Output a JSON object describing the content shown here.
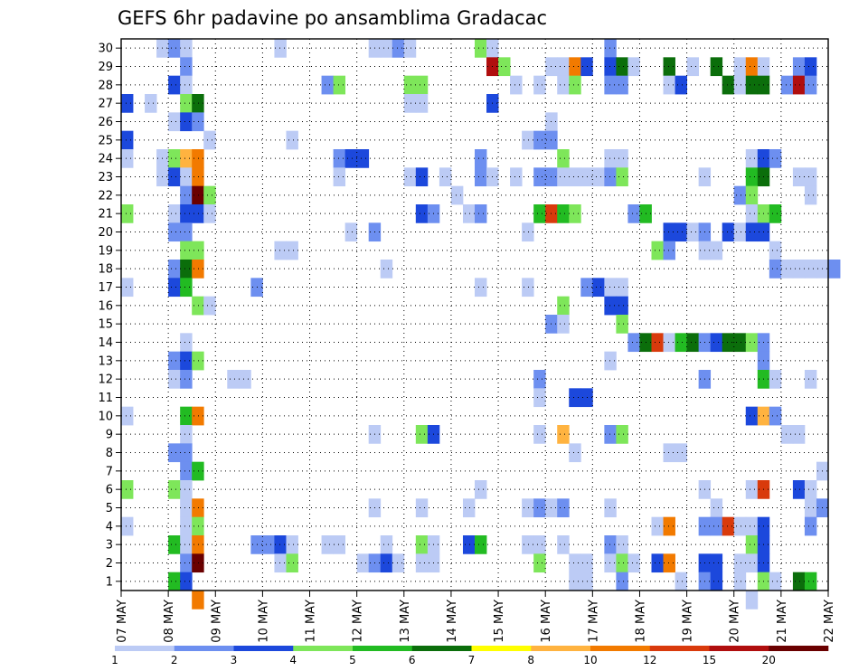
{
  "chart_data": {
    "type": "heatmap",
    "title": "GEFS 6hr padavine po ansamblima Gradacac",
    "y_ticks": [
      "1",
      "2",
      "3",
      "4",
      "5",
      "6",
      "7",
      "8",
      "9",
      "10",
      "11",
      "12",
      "13",
      "14",
      "15",
      "16",
      "17",
      "18",
      "19",
      "20",
      "21",
      "22",
      "23",
      "24",
      "25",
      "26",
      "27",
      "28",
      "29",
      "30"
    ],
    "x_ticks": [
      "07 MAY",
      "08 MAY",
      "09 MAY",
      "10 MAY",
      "11 MAY",
      "12 MAY",
      "13 MAY",
      "14 MAY",
      "15 MAY",
      "16 MAY",
      "17 MAY",
      "18 MAY",
      "19 MAY",
      "20 MAY",
      "21 MAY",
      "22 MAY"
    ],
    "x_range_days": [
      0,
      15
    ],
    "x_step_hours": 6,
    "y_range": [
      1,
      30
    ],
    "grid": "dotted",
    "legend_position": "bottom",
    "legend": {
      "labels": [
        "1",
        "2",
        "3",
        "4",
        "5",
        "6",
        "7",
        "8",
        "10",
        "12",
        "15",
        "20"
      ],
      "colors": [
        "#bccbf5",
        "#6d8ff0",
        "#1c48dc",
        "#7ee65a",
        "#22bb22",
        "#0b6e0b",
        "#ffff00",
        "#ffb340",
        "#f27a00",
        "#d93a0c",
        "#b00e0e",
        "#6a0000"
      ]
    },
    "data_note": "cells: [member, time_step_index, color_class 0-11]",
    "cells": [
      [
        30,
        3,
        0
      ],
      [
        30,
        4,
        1
      ],
      [
        30,
        5,
        0
      ],
      [
        30,
        13,
        0
      ],
      [
        30,
        21,
        0
      ],
      [
        30,
        22,
        0
      ],
      [
        30,
        23,
        1
      ],
      [
        30,
        24,
        0
      ],
      [
        30,
        30,
        3
      ],
      [
        30,
        31,
        0
      ],
      [
        30,
        41,
        1
      ],
      [
        29,
        5,
        1
      ],
      [
        29,
        31,
        10
      ],
      [
        29,
        32,
        3
      ],
      [
        29,
        36,
        0
      ],
      [
        29,
        37,
        0
      ],
      [
        29,
        38,
        8
      ],
      [
        29,
        39,
        2
      ],
      [
        29,
        41,
        2
      ],
      [
        29,
        42,
        5
      ],
      [
        29,
        43,
        0
      ],
      [
        29,
        46,
        5
      ],
      [
        29,
        48,
        0
      ],
      [
        29,
        50,
        5
      ],
      [
        29,
        52,
        0
      ],
      [
        29,
        53,
        8
      ],
      [
        29,
        54,
        0
      ],
      [
        29,
        57,
        1
      ],
      [
        29,
        58,
        2
      ],
      [
        28,
        4,
        2
      ],
      [
        28,
        5,
        0
      ],
      [
        28,
        17,
        1
      ],
      [
        28,
        18,
        3
      ],
      [
        28,
        24,
        3
      ],
      [
        28,
        25,
        3
      ],
      [
        28,
        33,
        0
      ],
      [
        28,
        35,
        0
      ],
      [
        28,
        37,
        0
      ],
      [
        28,
        38,
        3
      ],
      [
        28,
        41,
        1
      ],
      [
        28,
        42,
        1
      ],
      [
        28,
        46,
        0
      ],
      [
        28,
        47,
        2
      ],
      [
        28,
        51,
        5
      ],
      [
        28,
        52,
        0
      ],
      [
        28,
        53,
        5
      ],
      [
        28,
        54,
        5
      ],
      [
        28,
        56,
        1
      ],
      [
        28,
        57,
        10
      ],
      [
        28,
        58,
        1
      ],
      [
        27,
        0,
        2
      ],
      [
        27,
        2,
        0
      ],
      [
        27,
        5,
        3
      ],
      [
        27,
        6,
        5
      ],
      [
        27,
        24,
        0
      ],
      [
        27,
        25,
        0
      ],
      [
        27,
        31,
        2
      ],
      [
        26,
        4,
        0
      ],
      [
        26,
        5,
        2
      ],
      [
        26,
        6,
        1
      ],
      [
        26,
        36,
        0
      ],
      [
        25,
        0,
        2
      ],
      [
        25,
        7,
        0
      ],
      [
        25,
        14,
        0
      ],
      [
        25,
        34,
        0
      ],
      [
        25,
        35,
        1
      ],
      [
        25,
        36,
        1
      ],
      [
        24,
        0,
        0
      ],
      [
        24,
        3,
        0
      ],
      [
        24,
        4,
        3
      ],
      [
        24,
        5,
        7
      ],
      [
        24,
        6,
        8
      ],
      [
        24,
        18,
        1
      ],
      [
        24,
        19,
        2
      ],
      [
        24,
        20,
        2
      ],
      [
        24,
        30,
        1
      ],
      [
        24,
        37,
        3
      ],
      [
        24,
        41,
        0
      ],
      [
        24,
        42,
        0
      ],
      [
        24,
        53,
        0
      ],
      [
        24,
        54,
        2
      ],
      [
        24,
        55,
        1
      ],
      [
        23,
        3,
        0
      ],
      [
        23,
        4,
        2
      ],
      [
        23,
        5,
        0
      ],
      [
        23,
        6,
        8
      ],
      [
        23,
        18,
        0
      ],
      [
        23,
        24,
        0
      ],
      [
        23,
        25,
        2
      ],
      [
        23,
        27,
        0
      ],
      [
        23,
        30,
        1
      ],
      [
        23,
        31,
        0
      ],
      [
        23,
        33,
        0
      ],
      [
        23,
        35,
        1
      ],
      [
        23,
        36,
        1
      ],
      [
        23,
        37,
        0
      ],
      [
        23,
        38,
        0
      ],
      [
        23,
        39,
        0
      ],
      [
        23,
        40,
        0
      ],
      [
        23,
        41,
        1
      ],
      [
        23,
        42,
        3
      ],
      [
        23,
        49,
        0
      ],
      [
        23,
        53,
        4
      ],
      [
        23,
        54,
        5
      ],
      [
        23,
        57,
        0
      ],
      [
        23,
        58,
        0
      ],
      [
        22,
        5,
        1
      ],
      [
        22,
        6,
        11
      ],
      [
        22,
        7,
        3
      ],
      [
        22,
        28,
        0
      ],
      [
        22,
        52,
        1
      ],
      [
        22,
        53,
        3
      ],
      [
        22,
        58,
        0
      ],
      [
        21,
        0,
        3
      ],
      [
        21,
        4,
        0
      ],
      [
        21,
        5,
        2
      ],
      [
        21,
        6,
        2
      ],
      [
        21,
        7,
        0
      ],
      [
        21,
        25,
        2
      ],
      [
        21,
        26,
        1
      ],
      [
        21,
        29,
        0
      ],
      [
        21,
        30,
        1
      ],
      [
        21,
        35,
        4
      ],
      [
        21,
        36,
        9
      ],
      [
        21,
        37,
        4
      ],
      [
        21,
        38,
        3
      ],
      [
        21,
        43,
        1
      ],
      [
        21,
        44,
        4
      ],
      [
        21,
        53,
        0
      ],
      [
        21,
        54,
        3
      ],
      [
        21,
        55,
        4
      ],
      [
        20,
        4,
        1
      ],
      [
        20,
        5,
        1
      ],
      [
        20,
        19,
        0
      ],
      [
        20,
        21,
        1
      ],
      [
        20,
        34,
        0
      ],
      [
        20,
        46,
        2
      ],
      [
        20,
        47,
        2
      ],
      [
        20,
        48,
        0
      ],
      [
        20,
        49,
        1
      ],
      [
        20,
        51,
        2
      ],
      [
        20,
        52,
        0
      ],
      [
        20,
        53,
        2
      ],
      [
        20,
        54,
        2
      ],
      [
        19,
        5,
        3
      ],
      [
        19,
        6,
        3
      ],
      [
        19,
        13,
        0
      ],
      [
        19,
        14,
        0
      ],
      [
        19,
        45,
        3
      ],
      [
        19,
        46,
        1
      ],
      [
        19,
        49,
        0
      ],
      [
        19,
        50,
        0
      ],
      [
        19,
        55,
        0
      ],
      [
        18,
        4,
        1
      ],
      [
        18,
        5,
        5
      ],
      [
        18,
        6,
        8
      ],
      [
        18,
        22,
        0
      ],
      [
        18,
        55,
        1
      ],
      [
        18,
        56,
        0
      ],
      [
        18,
        57,
        0
      ],
      [
        18,
        58,
        0
      ],
      [
        18,
        59,
        0
      ],
      [
        18,
        60,
        1
      ],
      [
        17,
        0,
        0
      ],
      [
        17,
        4,
        2
      ],
      [
        17,
        5,
        4
      ],
      [
        17,
        11,
        1
      ],
      [
        17,
        30,
        0
      ],
      [
        17,
        34,
        0
      ],
      [
        17,
        39,
        1
      ],
      [
        17,
        40,
        2
      ],
      [
        17,
        41,
        0
      ],
      [
        17,
        42,
        0
      ],
      [
        16,
        6,
        3
      ],
      [
        16,
        7,
        0
      ],
      [
        16,
        37,
        3
      ],
      [
        16,
        41,
        2
      ],
      [
        16,
        42,
        2
      ],
      [
        15,
        36,
        1
      ],
      [
        15,
        37,
        0
      ],
      [
        15,
        42,
        3
      ],
      [
        14,
        5,
        0
      ],
      [
        14,
        43,
        1
      ],
      [
        14,
        44,
        5
      ],
      [
        14,
        45,
        9
      ],
      [
        14,
        46,
        0
      ],
      [
        14,
        47,
        4
      ],
      [
        14,
        48,
        5
      ],
      [
        14,
        49,
        1
      ],
      [
        14,
        50,
        2
      ],
      [
        14,
        51,
        5
      ],
      [
        14,
        52,
        5
      ],
      [
        14,
        53,
        3
      ],
      [
        14,
        54,
        1
      ],
      [
        13,
        4,
        1
      ],
      [
        13,
        5,
        2
      ],
      [
        13,
        6,
        3
      ],
      [
        13,
        41,
        0
      ],
      [
        13,
        54,
        1
      ],
      [
        12,
        4,
        0
      ],
      [
        12,
        5,
        1
      ],
      [
        12,
        9,
        0
      ],
      [
        12,
        10,
        0
      ],
      [
        12,
        35,
        1
      ],
      [
        12,
        49,
        1
      ],
      [
        12,
        54,
        4
      ],
      [
        12,
        55,
        0
      ],
      [
        12,
        58,
        0
      ],
      [
        11,
        35,
        0
      ],
      [
        11,
        38,
        2
      ],
      [
        11,
        39,
        2
      ],
      [
        10,
        0,
        0
      ],
      [
        10,
        5,
        4
      ],
      [
        10,
        6,
        8
      ],
      [
        10,
        53,
        2
      ],
      [
        10,
        54,
        7
      ],
      [
        10,
        55,
        1
      ],
      [
        9,
        5,
        0
      ],
      [
        9,
        21,
        0
      ],
      [
        9,
        25,
        3
      ],
      [
        9,
        26,
        2
      ],
      [
        9,
        35,
        0
      ],
      [
        9,
        37,
        7
      ],
      [
        9,
        41,
        1
      ],
      [
        9,
        42,
        3
      ],
      [
        9,
        56,
        0
      ],
      [
        9,
        57,
        0
      ],
      [
        8,
        4,
        1
      ],
      [
        8,
        5,
        1
      ],
      [
        8,
        38,
        0
      ],
      [
        8,
        46,
        0
      ],
      [
        8,
        47,
        0
      ],
      [
        7,
        5,
        1
      ],
      [
        7,
        6,
        4
      ],
      [
        7,
        59,
        0
      ],
      [
        6,
        0,
        3
      ],
      [
        6,
        4,
        3
      ],
      [
        6,
        5,
        0
      ],
      [
        6,
        30,
        0
      ],
      [
        6,
        49,
        0
      ],
      [
        6,
        53,
        0
      ],
      [
        6,
        54,
        9
      ],
      [
        6,
        57,
        2
      ],
      [
        6,
        58,
        0
      ],
      [
        5,
        5,
        0
      ],
      [
        5,
        6,
        8
      ],
      [
        5,
        21,
        0
      ],
      [
        5,
        25,
        0
      ],
      [
        5,
        29,
        0
      ],
      [
        5,
        34,
        0
      ],
      [
        5,
        35,
        1
      ],
      [
        5,
        36,
        0
      ],
      [
        5,
        37,
        1
      ],
      [
        5,
        41,
        0
      ],
      [
        5,
        50,
        0
      ],
      [
        5,
        58,
        0
      ],
      [
        5,
        59,
        1
      ],
      [
        4,
        0,
        0
      ],
      [
        4,
        5,
        0
      ],
      [
        4,
        6,
        3
      ],
      [
        4,
        45,
        0
      ],
      [
        4,
        46,
        8
      ],
      [
        4,
        49,
        1
      ],
      [
        4,
        50,
        1
      ],
      [
        4,
        51,
        9
      ],
      [
        4,
        52,
        0
      ],
      [
        4,
        53,
        0
      ],
      [
        4,
        54,
        2
      ],
      [
        4,
        58,
        1
      ],
      [
        3,
        4,
        4
      ],
      [
        3,
        5,
        0
      ],
      [
        3,
        6,
        8
      ],
      [
        3,
        11,
        1
      ],
      [
        3,
        12,
        1
      ],
      [
        3,
        13,
        2
      ],
      [
        3,
        14,
        0
      ],
      [
        3,
        17,
        0
      ],
      [
        3,
        18,
        0
      ],
      [
        3,
        22,
        0
      ],
      [
        3,
        25,
        3
      ],
      [
        3,
        26,
        0
      ],
      [
        3,
        29,
        2
      ],
      [
        3,
        30,
        4
      ],
      [
        3,
        34,
        0
      ],
      [
        3,
        35,
        0
      ],
      [
        3,
        37,
        0
      ],
      [
        3,
        41,
        1
      ],
      [
        3,
        42,
        0
      ],
      [
        3,
        53,
        3
      ],
      [
        3,
        54,
        2
      ],
      [
        2,
        5,
        1
      ],
      [
        2,
        6,
        11
      ],
      [
        2,
        13,
        0
      ],
      [
        2,
        14,
        3
      ],
      [
        2,
        20,
        0
      ],
      [
        2,
        21,
        1
      ],
      [
        2,
        22,
        2
      ],
      [
        2,
        23,
        0
      ],
      [
        2,
        25,
        0
      ],
      [
        2,
        26,
        0
      ],
      [
        2,
        35,
        3
      ],
      [
        2,
        38,
        0
      ],
      [
        2,
        39,
        0
      ],
      [
        2,
        41,
        0
      ],
      [
        2,
        42,
        3
      ],
      [
        2,
        43,
        0
      ],
      [
        2,
        45,
        2
      ],
      [
        2,
        46,
        8
      ],
      [
        2,
        49,
        2
      ],
      [
        2,
        50,
        2
      ],
      [
        2,
        52,
        0
      ],
      [
        2,
        53,
        0
      ],
      [
        2,
        54,
        2
      ],
      [
        1,
        4,
        4
      ],
      [
        1,
        5,
        2
      ],
      [
        1,
        38,
        0
      ],
      [
        1,
        39,
        0
      ],
      [
        1,
        42,
        1
      ],
      [
        1,
        47,
        0
      ],
      [
        1,
        49,
        1
      ],
      [
        1,
        50,
        2
      ],
      [
        1,
        52,
        0
      ],
      [
        1,
        54,
        3
      ],
      [
        1,
        55,
        0
      ],
      [
        1,
        57,
        5
      ],
      [
        1,
        58,
        4
      ],
      [
        0,
        6,
        8
      ],
      [
        0,
        53,
        0
      ]
    ]
  }
}
